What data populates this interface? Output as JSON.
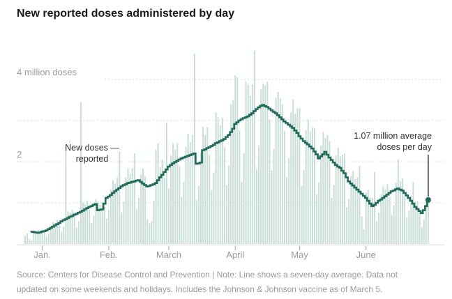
{
  "header": {
    "title": "New reported doses administered by day"
  },
  "y_axis": {
    "label_4m": "4 million doses",
    "label_2m": "2"
  },
  "annotations": {
    "new_doses": {
      "line1": "New doses —",
      "line2": "reported"
    },
    "current_avg": {
      "line1": "1.07 million average",
      "line2": "doses per day",
      "value": 1.07,
      "day_index": 188
    }
  },
  "footer": {
    "lines": [
      "Source: Centers for Disease Control and Prevention | Note: Line shows a seven-day average. Data not",
      "updated on some weekends and holidays. Includes the Johnson & Johnson vaccine as of March 5."
    ]
  },
  "colors": {
    "bar": "#c9ded6",
    "line": "#1f6a59",
    "grid": "#d9d9d9",
    "axis": "#d6d6d6",
    "tick": "#a0a0a0",
    "pointer": "#4a4a4a",
    "title": "#1a1a1a",
    "label": "#9b9b9b",
    "annotation": "#333333"
  },
  "chart_data": {
    "type": "bar",
    "title": "New reported doses administered by day",
    "unit": "million doses per day",
    "ylim": [
      0,
      5
    ],
    "gridline_values": [
      1,
      2,
      3,
      4
    ],
    "legend_position": "none",
    "months": [
      {
        "label": "Jan.",
        "day_index": 8
      },
      {
        "label": "Feb.",
        "day_index": 39
      },
      {
        "label": "March",
        "day_index": 67
      },
      {
        "label": "April",
        "day_index": 98
      },
      {
        "label": "May",
        "day_index": 128
      },
      {
        "label": "June",
        "day_index": 159
      }
    ],
    "series": [
      {
        "name": "New doses reported",
        "style": "bar",
        "values": [
          0.2,
          0.25,
          0.12,
          0.08,
          0.3,
          0.31,
          0.34,
          0.32,
          0.37,
          0.29,
          0.18,
          0.26,
          0.44,
          0.53,
          0.52,
          0.59,
          0.47,
          0.3,
          0.42,
          2.35,
          0.79,
          0.76,
          0.83,
          0.65,
          0.4,
          0.55,
          3.45,
          1.01,
          0.97,
          1.06,
          0.83,
          0.51,
          0.68,
          1.09,
          1.03,
          0.95,
          1.02,
          0.9,
          0.62,
          0.83,
          1.33,
          1.55,
          1.47,
          1.61,
          2.25,
          0.77,
          1.03,
          1.62,
          1.85,
          1.71,
          1.84,
          2.2,
          0.85,
          1.12,
          1.69,
          1.84,
          1.64,
          0.6,
          0.5,
          0.55,
          1.05,
          2.3,
          2.45,
          1.86,
          2.05,
          1.61,
          2.95,
          1.35,
          2.15,
          2.45,
          2.29,
          2.46,
          1.89,
          1.14,
          1.51,
          2.37,
          2.68,
          2.48,
          2.66,
          4.63,
          1.07,
          1.41,
          2.22,
          2.85,
          2.65,
          2.84,
          2.16,
          1.31,
          1.74,
          3.2,
          3.09,
          2.88,
          3.07,
          2.35,
          1.43,
          1.91,
          3.4,
          3.5,
          4.1,
          4.05,
          2.76,
          1.5,
          2.2,
          3.95,
          3.88,
          3.61,
          3.88,
          4.7,
          1.82,
          2.39,
          3.76,
          3.9,
          3.85,
          3.95,
          3.03,
          1.79,
          2.31,
          3.56,
          3.7,
          3.54,
          3.4,
          2.74,
          1.62,
          2.09,
          3.2,
          3.52,
          3.17,
          3.29,
          3.3,
          1.41,
          1.8,
          2.76,
          3.03,
          2.73,
          2.83,
          2.8,
          1.2,
          1.5,
          2.39,
          2.73,
          2.58,
          2.65,
          2.5,
          1.12,
          1.43,
          2.15,
          2.35,
          2.13,
          2.17,
          2.2,
          0.89,
          1.09,
          1.65,
          1.78,
          1.58,
          1.61,
          1.9,
          0.67,
          0.35,
          1.25,
          1.31,
          1.13,
          1.12,
          1.75,
          0.55,
          0.76,
          1.21,
          1.4,
          1.33,
          1.46,
          1.14,
          0.7,
          0.94,
          1.49,
          2.05,
          1.52,
          1.59,
          1.14,
          0.65,
          0.81,
          1.18,
          1.5,
          1.04,
          1.04,
          0.74,
          0.41,
          0.59,
          1.03,
          2.1
        ]
      },
      {
        "name": "Seven-day average",
        "style": "line",
        "values": [
          null,
          null,
          null,
          0.3,
          0.29,
          0.28,
          0.27,
          0.28,
          0.3,
          0.31,
          0.33,
          0.36,
          0.39,
          0.42,
          0.45,
          0.48,
          0.51,
          0.55,
          0.58,
          0.6,
          0.63,
          0.66,
          0.68,
          0.71,
          0.73,
          0.76,
          0.78,
          0.81,
          0.84,
          0.87,
          0.9,
          0.92,
          0.95,
          0.97,
          0.82,
          0.83,
          0.84,
          0.98,
          1.12,
          1.15,
          1.19,
          1.24,
          1.28,
          1.32,
          1.36,
          1.4,
          1.43,
          1.45,
          1.48,
          1.49,
          1.51,
          1.52,
          1.54,
          1.55,
          1.51,
          1.47,
          1.43,
          1.4,
          1.41,
          1.43,
          1.45,
          1.48,
          1.55,
          1.62,
          1.68,
          1.75,
          1.81,
          1.88,
          1.92,
          1.96,
          1.99,
          2.02,
          2.05,
          2.08,
          2.1,
          2.12,
          2.14,
          2.16,
          2.18,
          2.2,
          1.95,
          1.96,
          1.98,
          2.28,
          2.3,
          2.33,
          2.35,
          2.38,
          2.41,
          2.45,
          2.47,
          2.5,
          2.52,
          2.55,
          2.6,
          2.65,
          2.72,
          2.8,
          2.92,
          2.96,
          3.0,
          3.03,
          3.06,
          3.08,
          3.1,
          3.14,
          3.18,
          3.23,
          3.28,
          3.32,
          3.36,
          3.38,
          3.35,
          3.33,
          3.29,
          3.25,
          3.21,
          3.18,
          3.13,
          3.08,
          3.03,
          2.98,
          2.94,
          2.9,
          2.86,
          2.82,
          2.76,
          2.7,
          2.62,
          2.56,
          2.5,
          2.46,
          2.42,
          2.37,
          2.32,
          2.25,
          2.18,
          2.08,
          2.13,
          2.18,
          2.24,
          2.17,
          2.1,
          2.04,
          1.98,
          1.92,
          1.88,
          1.85,
          1.78,
          1.72,
          1.62,
          1.52,
          1.47,
          1.42,
          1.37,
          1.32,
          1.27,
          1.22,
          1.17,
          1.12,
          1.05,
          0.98,
          0.92,
          0.95,
          1.0,
          1.05,
          1.08,
          1.12,
          1.16,
          1.2,
          1.24,
          1.28,
          1.3,
          1.33,
          1.35,
          1.32,
          1.3,
          1.24,
          1.18,
          1.12,
          1.05,
          0.98,
          0.9,
          0.85,
          0.8,
          0.75,
          0.82,
          0.92,
          1.07
        ]
      }
    ]
  }
}
